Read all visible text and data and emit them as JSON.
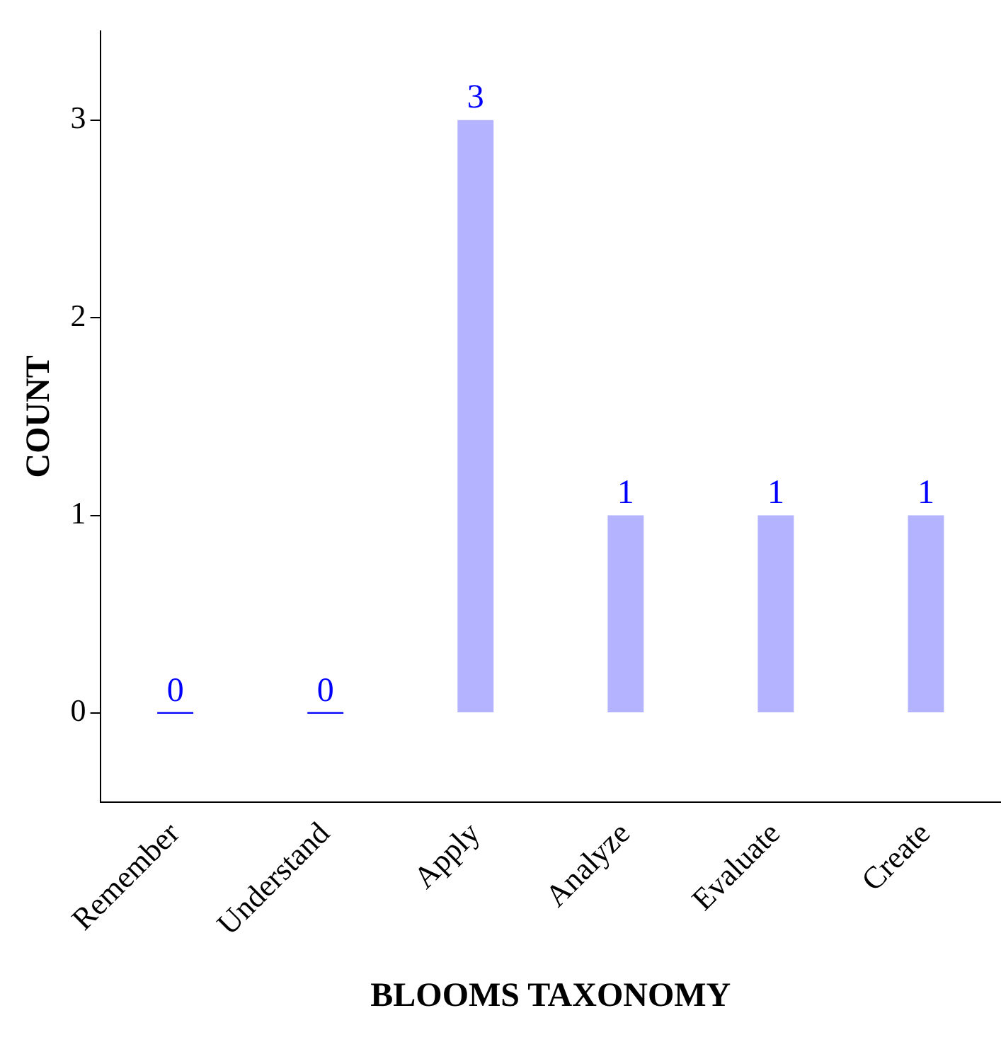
{
  "chart_data": {
    "type": "bar",
    "xlabel": "BLOOMS TAXONOMY",
    "ylabel": "COUNT",
    "categories": [
      "Remember",
      "Understand",
      "Apply",
      "Analyze",
      "Evaluate",
      "Create"
    ],
    "values": [
      0,
      0,
      3,
      1,
      1,
      1
    ],
    "color": "#b3b3ff",
    "ylim": [
      -0.45,
      3.45
    ],
    "yticks": [
      0,
      1,
      2,
      3
    ],
    "grid": false,
    "data_labels": true
  }
}
